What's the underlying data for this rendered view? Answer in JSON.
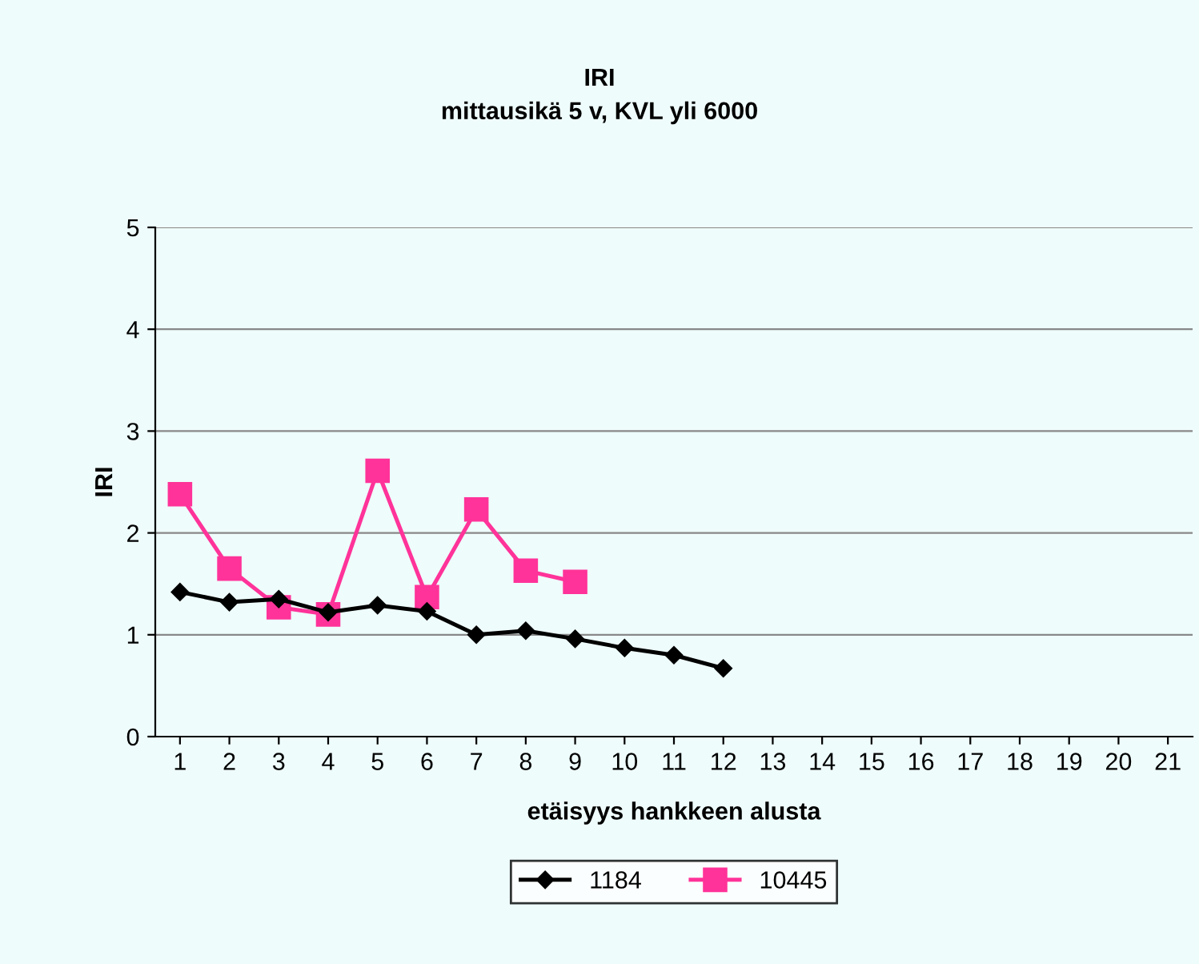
{
  "chart_data": {
    "type": "line",
    "title": "IRI\nmittausikä 5 v, KVL yli 6000",
    "xlabel": "etäisyys hankkeen alusta",
    "ylabel": "IRI",
    "categories": [
      "1",
      "2",
      "3",
      "4",
      "5",
      "6",
      "7",
      "8",
      "9",
      "10",
      "11",
      "12",
      "13",
      "14",
      "15",
      "16",
      "17",
      "18",
      "19",
      "20",
      "21"
    ],
    "series": [
      {
        "name": "1184",
        "color": "#000000",
        "marker": "diamond",
        "values": [
          1.42,
          1.32,
          1.35,
          1.22,
          1.29,
          1.23,
          1.0,
          1.04,
          0.96,
          0.87,
          0.8,
          0.67,
          null,
          null,
          null,
          null,
          null,
          null,
          null,
          null,
          null
        ]
      },
      {
        "name": "10445",
        "color": "#ff3399",
        "marker": "square",
        "values": [
          2.38,
          1.65,
          1.27,
          1.2,
          2.61,
          1.37,
          2.23,
          1.63,
          1.52,
          null,
          null,
          null,
          null,
          null,
          null,
          null,
          null,
          null,
          null,
          null,
          null
        ]
      }
    ],
    "ylim": [
      0,
      5
    ],
    "yticks": [
      0,
      1,
      2,
      3,
      4,
      5
    ],
    "grid": "y",
    "legend": "bottom",
    "line_style": "solid"
  }
}
